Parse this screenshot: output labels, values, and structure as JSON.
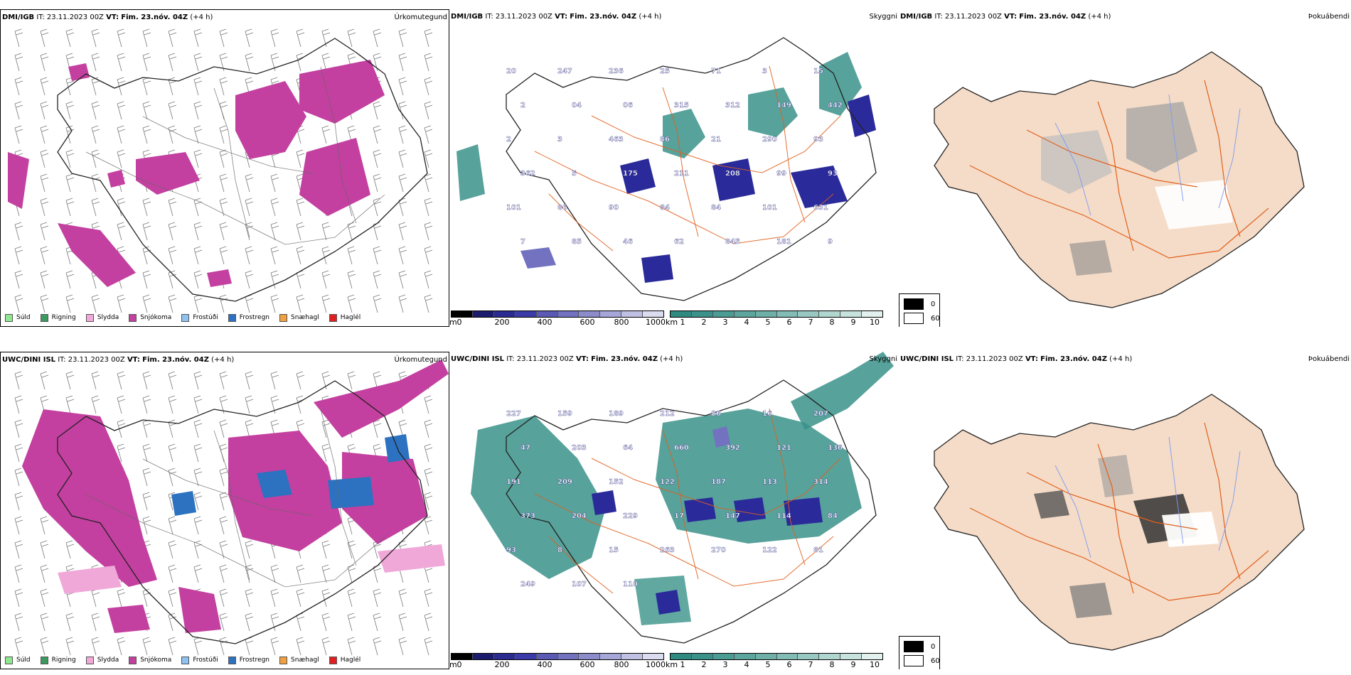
{
  "rows": [
    {
      "model": "DMI/IGB",
      "it_label": "IT:",
      "it_value": "23.11.2023 00Z",
      "vt_label": "VT:",
      "vt_value": "Fim. 23.nóv. 04Z",
      "lead": "(+4 h)",
      "visibility_labels": [
        "20",
        "247",
        "236",
        "25",
        "71",
        "3",
        "15",
        "2",
        "04",
        "06",
        "315",
        "312",
        "149",
        "442",
        "2",
        "3",
        "463",
        "86",
        "21",
        "290",
        "93",
        "362",
        "5",
        "175",
        "211",
        "208",
        "99",
        "93",
        "101",
        "86",
        "90",
        "84",
        "84",
        "101",
        "631",
        "7",
        "85",
        "46",
        "62",
        "845",
        "181",
        "9"
      ],
      "visibility_label_count": 42
    },
    {
      "model": "UWC/DINI ISL",
      "it_label": "IT:",
      "it_value": "23.11.2023 00Z",
      "vt_label": "VT:",
      "vt_value": "Fim. 23.nóv. 04Z",
      "lead": "(+4 h)",
      "visibility_labels": [
        "227",
        "159",
        "189",
        "212",
        "86",
        "16",
        "207",
        "47",
        "203",
        "64",
        "660",
        "392",
        "121",
        "136",
        "191",
        "209",
        "152",
        "122",
        "187",
        "113",
        "314",
        "373",
        "204",
        "229",
        "17",
        "147",
        "114",
        "84",
        "93",
        "8",
        "15",
        "263",
        "270",
        "122",
        "81",
        "249",
        "107",
        "110"
      ],
      "visibility_label_count": 38
    }
  ],
  "precip": {
    "title": "Úrkomutegund",
    "legend": [
      {
        "label": "Súld",
        "color": "#8fe88f"
      },
      {
        "label": "Rigning",
        "color": "#3c9a5e"
      },
      {
        "label": "Slydda",
        "color": "#f0a8d8"
      },
      {
        "label": "Snjókoma",
        "color": "#c340a0"
      },
      {
        "label": "Frostúði",
        "color": "#8ec2f0"
      },
      {
        "label": "Frostregn",
        "color": "#2c72c0"
      },
      {
        "label": "Snæhagl",
        "color": "#f0a040"
      },
      {
        "label": "Haglél",
        "color": "#e02020"
      }
    ]
  },
  "visibility": {
    "title": "Skyggni",
    "ceiling_unit": "m",
    "ceiling_ticks": [
      "0",
      "200",
      "400",
      "600",
      "800",
      "1000"
    ],
    "ceiling_colors": [
      "#000000",
      "#1c1c6e",
      "#2a2a90",
      "#3a3aa8",
      "#5a5ab4",
      "#7272c0",
      "#8c8cca",
      "#a6a6d8",
      "#c0c0e4",
      "#dcdcf0"
    ],
    "vis_unit": "km",
    "vis_ticks": [
      "1",
      "2",
      "3",
      "4",
      "5",
      "6",
      "7",
      "8",
      "9",
      "10"
    ],
    "vis_colors": [
      "#2f8a80",
      "#3a928a",
      "#4a9c94",
      "#5ca69e",
      "#6eb0a8",
      "#82bcb4",
      "#98c8c2",
      "#b0d6d0",
      "#c8e2de",
      "#e2f0ee"
    ]
  },
  "fog": {
    "title": "Þokuábendi",
    "legend": [
      {
        "label": "0",
        "color": "#000000"
      },
      {
        "label": "60",
        "color": "#ffffff"
      }
    ]
  },
  "colors": {
    "land": "#f5dcc8",
    "roads": "#e0601c",
    "rivers": "#7b9bf0",
    "coast": "#222222",
    "snow": "#c340a0",
    "teal": "#3a928a",
    "navy": "#2a2a9a"
  }
}
